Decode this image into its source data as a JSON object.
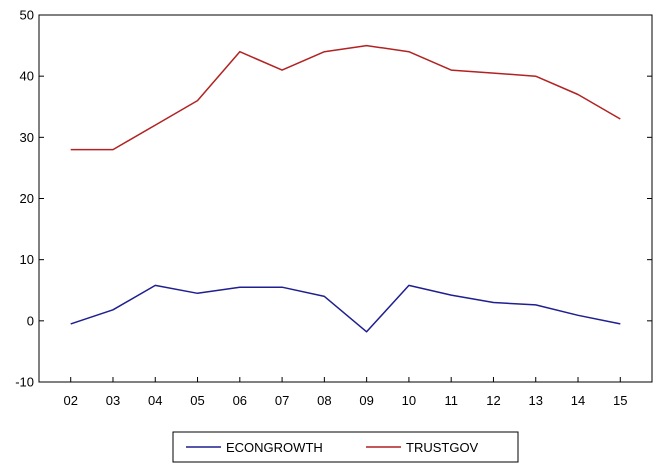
{
  "chart_data": {
    "type": "line",
    "title": "",
    "xlabel": "",
    "ylabel": "",
    "categories": [
      "02",
      "03",
      "04",
      "05",
      "06",
      "07",
      "08",
      "09",
      "10",
      "11",
      "12",
      "13",
      "14",
      "15"
    ],
    "yticks": [
      -10,
      0,
      10,
      20,
      30,
      40,
      50
    ],
    "ylim": [
      -10,
      50
    ],
    "grid": false,
    "legend_position": "bottom",
    "series": [
      {
        "name": "ECONGROWTH",
        "color": "#1f1f8f",
        "values": [
          -0.5,
          1.8,
          5.8,
          4.5,
          5.5,
          5.5,
          4.0,
          -1.8,
          5.8,
          4.2,
          3.0,
          2.6,
          0.9,
          -0.5
        ]
      },
      {
        "name": "TRUSTGOV",
        "color": "#b22222",
        "values": [
          28,
          28,
          32,
          36,
          44,
          41,
          44,
          45,
          44,
          41,
          40.5,
          40,
          37,
          33
        ]
      }
    ]
  }
}
